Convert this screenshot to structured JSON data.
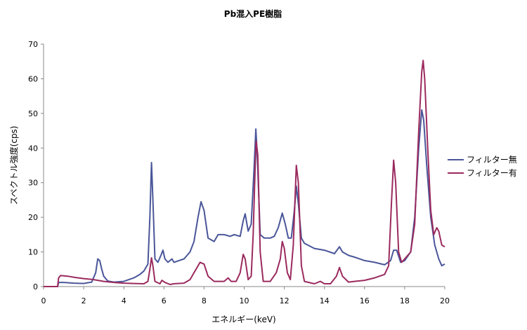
{
  "chart_data": {
    "type": "line",
    "title": "Pb混入PE樹脂",
    "xlabel": "エネルギー(keV)",
    "ylabel": "スペクトル強度(cps)",
    "xlim": [
      0,
      20
    ],
    "ylim": [
      0,
      70
    ],
    "xticks": [
      "0",
      "2",
      "4",
      "6",
      "8",
      "10",
      "12",
      "14",
      "16",
      "18",
      "20"
    ],
    "yticks": [
      "0",
      "10",
      "20",
      "30",
      "40",
      "50",
      "60",
      "70"
    ],
    "grid": false,
    "legend_position": "right",
    "series": [
      {
        "name": "フィルター無",
        "color": "#4a5699",
        "points": [
          [
            0.0,
            0
          ],
          [
            0.7,
            0
          ],
          [
            0.75,
            1.2
          ],
          [
            1.0,
            1.2
          ],
          [
            1.5,
            1.0
          ],
          [
            2.0,
            0.9
          ],
          [
            2.4,
            1.3
          ],
          [
            2.6,
            4
          ],
          [
            2.7,
            8
          ],
          [
            2.8,
            7.5
          ],
          [
            2.9,
            5
          ],
          [
            3.0,
            3
          ],
          [
            3.2,
            1.6
          ],
          [
            3.5,
            1.3
          ],
          [
            4.0,
            1.5
          ],
          [
            4.5,
            2.5
          ],
          [
            4.8,
            3.5
          ],
          [
            5.0,
            4.5
          ],
          [
            5.2,
            6.5
          ],
          [
            5.3,
            20
          ],
          [
            5.38,
            35.8
          ],
          [
            5.45,
            25
          ],
          [
            5.55,
            8
          ],
          [
            5.7,
            7
          ],
          [
            5.85,
            9
          ],
          [
            5.95,
            10.5
          ],
          [
            6.05,
            8
          ],
          [
            6.2,
            7
          ],
          [
            6.4,
            8
          ],
          [
            6.5,
            7
          ],
          [
            7.0,
            8
          ],
          [
            7.3,
            10
          ],
          [
            7.5,
            13
          ],
          [
            7.7,
            20
          ],
          [
            7.85,
            24.5
          ],
          [
            8.0,
            22
          ],
          [
            8.2,
            14
          ],
          [
            8.5,
            13
          ],
          [
            8.7,
            15
          ],
          [
            9.0,
            15
          ],
          [
            9.3,
            14.5
          ],
          [
            9.5,
            15
          ],
          [
            9.8,
            14.5
          ],
          [
            9.95,
            19
          ],
          [
            10.05,
            21
          ],
          [
            10.2,
            16
          ],
          [
            10.35,
            18
          ],
          [
            10.5,
            35
          ],
          [
            10.58,
            45.5
          ],
          [
            10.65,
            38
          ],
          [
            10.8,
            15
          ],
          [
            11.0,
            14
          ],
          [
            11.3,
            14
          ],
          [
            11.5,
            14.5
          ],
          [
            11.7,
            17
          ],
          [
            11.9,
            21.2
          ],
          [
            12.05,
            18
          ],
          [
            12.2,
            14
          ],
          [
            12.35,
            14
          ],
          [
            12.5,
            22
          ],
          [
            12.6,
            29
          ],
          [
            12.7,
            24
          ],
          [
            12.85,
            14
          ],
          [
            13.0,
            12.5
          ],
          [
            13.5,
            11
          ],
          [
            14.0,
            10.5
          ],
          [
            14.5,
            9.5
          ],
          [
            14.75,
            11.5
          ],
          [
            14.9,
            10
          ],
          [
            15.2,
            9
          ],
          [
            15.5,
            8.5
          ],
          [
            16.0,
            7.5
          ],
          [
            16.5,
            7
          ],
          [
            17.0,
            6.3
          ],
          [
            17.3,
            7.5
          ],
          [
            17.45,
            10.5
          ],
          [
            17.6,
            10.5
          ],
          [
            17.8,
            7
          ],
          [
            18.0,
            7.5
          ],
          [
            18.3,
            10
          ],
          [
            18.5,
            20
          ],
          [
            18.7,
            40
          ],
          [
            18.85,
            51
          ],
          [
            18.95,
            48
          ],
          [
            19.1,
            35
          ],
          [
            19.3,
            20
          ],
          [
            19.5,
            12
          ],
          [
            19.7,
            8
          ],
          [
            19.85,
            6
          ],
          [
            20.0,
            6.5
          ]
        ]
      },
      {
        "name": "フィルター有",
        "color": "#9b2a5e",
        "points": [
          [
            0.0,
            0
          ],
          [
            0.7,
            0
          ],
          [
            0.75,
            2.5
          ],
          [
            0.85,
            3.2
          ],
          [
            1.2,
            3.0
          ],
          [
            1.6,
            2.6
          ],
          [
            2.0,
            2.3
          ],
          [
            2.5,
            2.0
          ],
          [
            3.0,
            1.5
          ],
          [
            3.5,
            1.2
          ],
          [
            4.0,
            1.0
          ],
          [
            4.5,
            0.9
          ],
          [
            5.0,
            0.8
          ],
          [
            5.2,
            1.5
          ],
          [
            5.3,
            5
          ],
          [
            5.38,
            8.3
          ],
          [
            5.45,
            6
          ],
          [
            5.55,
            1.5
          ],
          [
            5.8,
            0.8
          ],
          [
            5.9,
            1.8
          ],
          [
            6.05,
            1.2
          ],
          [
            6.3,
            0.6
          ],
          [
            6.5,
            0.8
          ],
          [
            7.0,
            1.0
          ],
          [
            7.3,
            2.0
          ],
          [
            7.6,
            5
          ],
          [
            7.8,
            7
          ],
          [
            8.0,
            6.5
          ],
          [
            8.2,
            3
          ],
          [
            8.5,
            1.5
          ],
          [
            8.8,
            1.5
          ],
          [
            9.0,
            1.5
          ],
          [
            9.2,
            2.5
          ],
          [
            9.35,
            1.5
          ],
          [
            9.6,
            1.5
          ],
          [
            9.8,
            4
          ],
          [
            9.95,
            9.3
          ],
          [
            10.05,
            8
          ],
          [
            10.2,
            2
          ],
          [
            10.35,
            3
          ],
          [
            10.45,
            15
          ],
          [
            10.55,
            35
          ],
          [
            10.6,
            42
          ],
          [
            10.68,
            38
          ],
          [
            10.8,
            10
          ],
          [
            10.95,
            1.5
          ],
          [
            11.3,
            1.5
          ],
          [
            11.6,
            4
          ],
          [
            11.8,
            8
          ],
          [
            11.9,
            13
          ],
          [
            12.0,
            11
          ],
          [
            12.15,
            4
          ],
          [
            12.3,
            2
          ],
          [
            12.45,
            12
          ],
          [
            12.6,
            35
          ],
          [
            12.7,
            30
          ],
          [
            12.85,
            6
          ],
          [
            13.0,
            1.5
          ],
          [
            13.5,
            0.8
          ],
          [
            13.8,
            1.5
          ],
          [
            14.0,
            0.8
          ],
          [
            14.3,
            0.8
          ],
          [
            14.6,
            3
          ],
          [
            14.75,
            5.5
          ],
          [
            14.9,
            3
          ],
          [
            15.2,
            1.3
          ],
          [
            15.5,
            1.5
          ],
          [
            16.0,
            1.8
          ],
          [
            16.5,
            2.5
          ],
          [
            17.0,
            3.5
          ],
          [
            17.2,
            6
          ],
          [
            17.35,
            25
          ],
          [
            17.45,
            36.5
          ],
          [
            17.55,
            30
          ],
          [
            17.7,
            10
          ],
          [
            17.85,
            7
          ],
          [
            18.0,
            8
          ],
          [
            18.3,
            10
          ],
          [
            18.5,
            18
          ],
          [
            18.7,
            45
          ],
          [
            18.85,
            62
          ],
          [
            18.92,
            65.3
          ],
          [
            19.0,
            60
          ],
          [
            19.15,
            40
          ],
          [
            19.3,
            22
          ],
          [
            19.45,
            15
          ],
          [
            19.6,
            17
          ],
          [
            19.7,
            16
          ],
          [
            19.85,
            12
          ],
          [
            20.0,
            11.5
          ]
        ]
      }
    ]
  }
}
